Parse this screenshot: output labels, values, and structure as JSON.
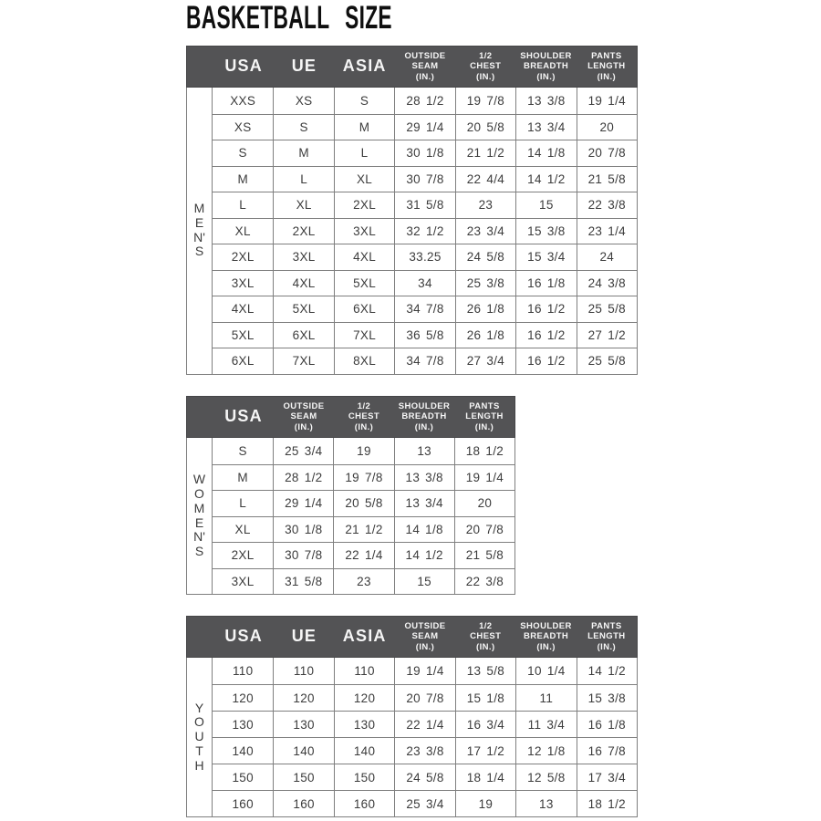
{
  "page": {
    "title": "BASKETBALL SIZE"
  },
  "colors": {
    "header_bg": "#535355",
    "header_text": "#f6f6f6",
    "cell_text": "#3c3c3c",
    "border": "#7f7f7f",
    "title_text": "#0f0f0f",
    "background": "#ffffff"
  },
  "tables": [
    {
      "id": "mens",
      "group_label": "MEN'S",
      "group_letters": [
        "M",
        "E",
        "N'",
        "S"
      ],
      "headers": [
        {
          "lines": [
            "USA"
          ]
        },
        {
          "lines": [
            "UE"
          ]
        },
        {
          "lines": [
            "ASIA"
          ]
        },
        {
          "lines": [
            "OUTSIDE",
            "SEAM",
            "(IN.)"
          ]
        },
        {
          "lines": [
            "1/2",
            "CHEST",
            "(IN.)"
          ]
        },
        {
          "lines": [
            "SHOULDER",
            "BREADTH",
            "(IN.)"
          ]
        },
        {
          "lines": [
            "PANTS",
            "LENGTH",
            "(IN.)"
          ]
        }
      ],
      "rows": [
        [
          "XXS",
          "XS",
          "S",
          "28 1/2",
          "19 7/8",
          "13 3/8",
          "19 1/4"
        ],
        [
          "XS",
          "S",
          "M",
          "29 1/4",
          "20 5/8",
          "13 3/4",
          "20"
        ],
        [
          "S",
          "M",
          "L",
          "30 1/8",
          "21 1/2",
          "14 1/8",
          "20 7/8"
        ],
        [
          "M",
          "L",
          "XL",
          "30 7/8",
          "22 4/4",
          "14 1/2",
          "21 5/8"
        ],
        [
          "L",
          "XL",
          "2XL",
          "31 5/8",
          "23",
          "15",
          "22 3/8"
        ],
        [
          "XL",
          "2XL",
          "3XL",
          "32 1/2",
          "23 3/4",
          "15 3/8",
          "23 1/4"
        ],
        [
          "2XL",
          "3XL",
          "4XL",
          "33.25",
          "24 5/8",
          "15 3/4",
          "24"
        ],
        [
          "3XL",
          "4XL",
          "5XL",
          "34",
          "25 3/8",
          "16 1/8",
          "24 3/8"
        ],
        [
          "4XL",
          "5XL",
          "6XL",
          "34 7/8",
          "26 1/8",
          "16 1/2",
          "25 5/8"
        ],
        [
          "5XL",
          "6XL",
          "7XL",
          "36 5/8",
          "26 1/8",
          "16 1/2",
          "27 1/2"
        ],
        [
          "6XL",
          "7XL",
          "8XL",
          "34 7/8",
          "27 3/4",
          "16 1/2",
          "25 5/8"
        ]
      ]
    },
    {
      "id": "womens",
      "group_label": "WOMEN'S",
      "group_letters": [
        "W",
        "O",
        "M",
        "E",
        "N'",
        "S"
      ],
      "headers": [
        {
          "lines": [
            "USA"
          ]
        },
        {
          "lines": [
            "OUTSIDE",
            "SEAM",
            "(IN.)"
          ]
        },
        {
          "lines": [
            "1/2",
            "CHEST",
            "(IN.)"
          ]
        },
        {
          "lines": [
            "SHOULDER",
            "BREADTH",
            "(IN.)"
          ]
        },
        {
          "lines": [
            "PANTS",
            "LENGTH",
            "(IN.)"
          ]
        }
      ],
      "rows": [
        [
          "S",
          "25 3/4",
          "19",
          "13",
          "18 1/2"
        ],
        [
          "M",
          "28 1/2",
          "19 7/8",
          "13 3/8",
          "19 1/4"
        ],
        [
          "L",
          "29 1/4",
          "20 5/8",
          "13 3/4",
          "20"
        ],
        [
          "XL",
          "30 1/8",
          "21 1/2",
          "14 1/8",
          "20 7/8"
        ],
        [
          "2XL",
          "30 7/8",
          "22 1/4",
          "14 1/2",
          "21 5/8"
        ],
        [
          "3XL",
          "31 5/8",
          "23",
          "15",
          "22 3/8"
        ]
      ]
    },
    {
      "id": "youth",
      "group_label": "YOUTH",
      "group_letters": [
        "Y",
        "O",
        "U",
        "T",
        "H"
      ],
      "headers": [
        {
          "lines": [
            "USA"
          ]
        },
        {
          "lines": [
            "UE"
          ]
        },
        {
          "lines": [
            "ASIA"
          ]
        },
        {
          "lines": [
            "OUTSIDE",
            "SEAM",
            "(IN.)"
          ]
        },
        {
          "lines": [
            "1/2",
            "CHEST",
            "(IN.)"
          ]
        },
        {
          "lines": [
            "SHOULDER",
            "BREADTH",
            "(IN.)"
          ]
        },
        {
          "lines": [
            "PANTS",
            "LENGTH",
            "(IN.)"
          ]
        }
      ],
      "rows": [
        [
          "110",
          "110",
          "110",
          "19 1/4",
          "13 5/8",
          "10 1/4",
          "14 1/2"
        ],
        [
          "120",
          "120",
          "120",
          "20 7/8",
          "15 1/8",
          "11",
          "15 3/8"
        ],
        [
          "130",
          "130",
          "130",
          "22 1/4",
          "16 3/4",
          "11 3/4",
          "16 1/8"
        ],
        [
          "140",
          "140",
          "140",
          "23 3/8",
          "17 1/2",
          "12 1/8",
          "16 7/8"
        ],
        [
          "150",
          "150",
          "150",
          "24 5/8",
          "18 1/4",
          "12 5/8",
          "17 3/4"
        ],
        [
          "160",
          "160",
          "160",
          "25 3/4",
          "19",
          "13",
          "18 1/2"
        ]
      ]
    }
  ]
}
